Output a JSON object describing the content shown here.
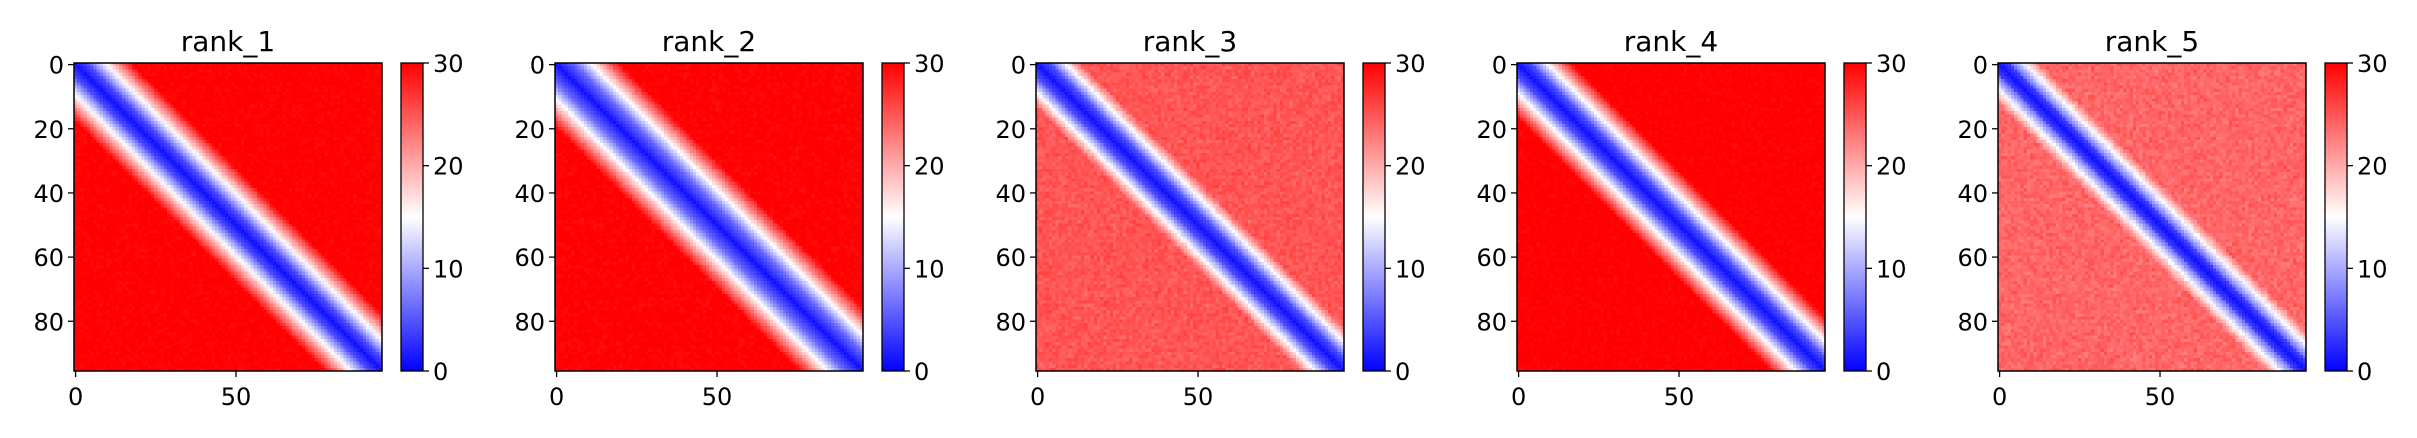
{
  "figure": {
    "panel_count": 5,
    "colormap": "bwr",
    "colors": {
      "low": "#0000ff",
      "mid": "#ffffff",
      "high": "#ff0000"
    }
  },
  "chart_data": [
    {
      "type": "heatmap",
      "title": "rank_1",
      "size": 96,
      "xlim": [
        0,
        95
      ],
      "ylim": [
        95,
        0
      ],
      "xticks": [
        0,
        50
      ],
      "yticks": [
        0,
        20,
        40,
        60,
        80
      ],
      "colorbar": {
        "min": 0,
        "max": 30,
        "ticks": [
          0,
          10,
          20,
          30
        ]
      },
      "pattern": {
        "band_width": 4,
        "transition": 14,
        "floor": 1,
        "cap": 30,
        "near_band_bonus": 0,
        "noise": 0.06
      }
    },
    {
      "type": "heatmap",
      "title": "rank_2",
      "size": 96,
      "xlim": [
        0,
        95
      ],
      "ylim": [
        95,
        0
      ],
      "xticks": [
        0,
        50
      ],
      "yticks": [
        0,
        20,
        40,
        60,
        80
      ],
      "colorbar": {
        "min": 0,
        "max": 30,
        "ticks": [
          0,
          10,
          20,
          30
        ]
      },
      "pattern": {
        "band_width": 5,
        "transition": 15,
        "floor": 1,
        "cap": 30,
        "near_band_bonus": 0,
        "noise": 0.07
      }
    },
    {
      "type": "heatmap",
      "title": "rank_3",
      "size": 96,
      "xlim": [
        0,
        95
      ],
      "ylim": [
        95,
        0
      ],
      "xticks": [
        0,
        50
      ],
      "yticks": [
        0,
        20,
        40,
        60,
        80
      ],
      "colorbar": {
        "min": 0,
        "max": 30,
        "ticks": [
          0,
          10,
          20,
          30
        ]
      },
      "pattern": {
        "band_width": 4,
        "transition": 10,
        "floor": 1,
        "cap": 25,
        "near_band_bonus": 0,
        "noise": 0.12
      }
    },
    {
      "type": "heatmap",
      "title": "rank_4",
      "size": 96,
      "xlim": [
        0,
        95
      ],
      "ylim": [
        95,
        0
      ],
      "xticks": [
        0,
        50
      ],
      "yticks": [
        0,
        20,
        40,
        60,
        80
      ],
      "colorbar": {
        "min": 0,
        "max": 30,
        "ticks": [
          0,
          10,
          20,
          30
        ]
      },
      "pattern": {
        "band_width": 4,
        "transition": 13,
        "floor": 1,
        "cap": 30,
        "near_band_bonus": 0,
        "noise": 0.05
      }
    },
    {
      "type": "heatmap",
      "title": "rank_5",
      "size": 96,
      "xlim": [
        0,
        95
      ],
      "ylim": [
        95,
        0
      ],
      "xticks": [
        0,
        50
      ],
      "yticks": [
        0,
        20,
        40,
        60,
        80
      ],
      "colorbar": {
        "min": 0,
        "max": 30,
        "ticks": [
          0,
          10,
          20,
          30
        ]
      },
      "pattern": {
        "band_width": 3,
        "transition": 10,
        "floor": 1,
        "cap": 24,
        "near_band_bonus": 0,
        "noise": 0.14
      }
    }
  ]
}
